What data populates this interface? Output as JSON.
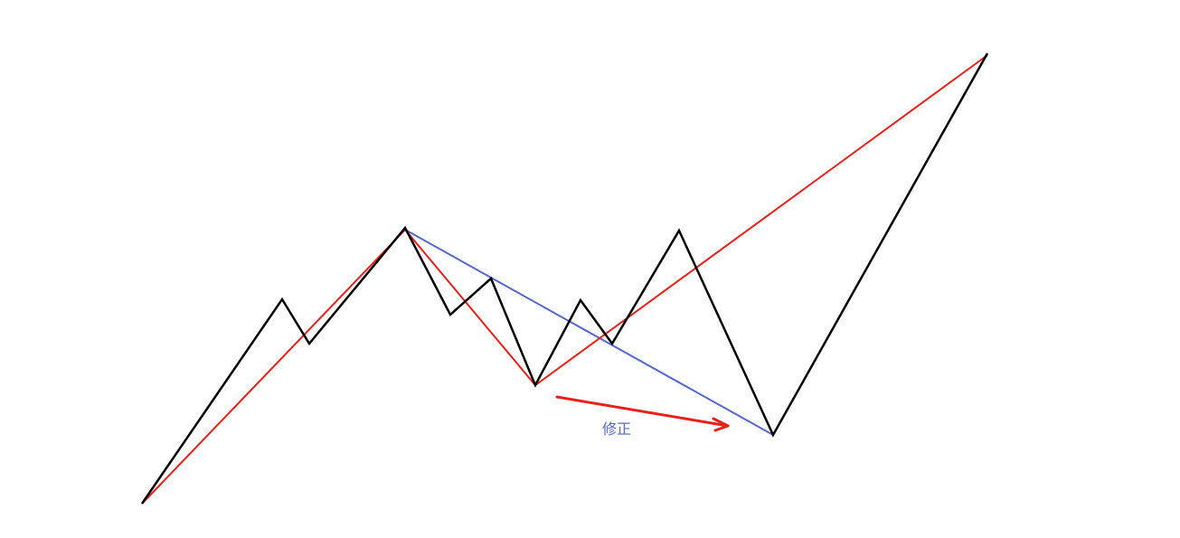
{
  "diagram": {
    "annotation_label": "修正",
    "colors": {
      "price_path": "#000000",
      "simplified_path": "#e8201a",
      "correction_line": "#5468c9",
      "arrow": "#e8201a",
      "label": "#5468c9",
      "background": "#ffffff"
    },
    "lines": [
      {
        "name": "price-path-line",
        "color_key": "price_path"
      },
      {
        "name": "simplified-trend-line",
        "color_key": "simplified_path"
      },
      {
        "name": "correction-line",
        "color_key": "correction_line"
      }
    ],
    "arrow": {
      "name": "correction-arrow",
      "color_key": "arrow"
    }
  }
}
